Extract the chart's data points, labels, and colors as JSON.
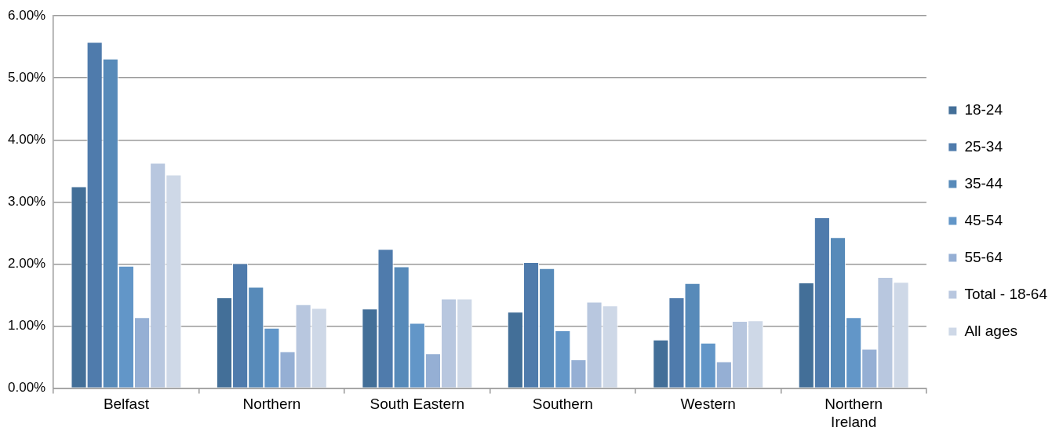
{
  "chart_data": {
    "type": "bar",
    "categories": [
      "Belfast",
      "Northern",
      "South Eastern",
      "Southern",
      "Western",
      "Northern Ireland"
    ],
    "series": [
      {
        "name": "18-24",
        "color": "#436f98",
        "values": [
          3.25,
          1.46,
          1.28,
          1.23,
          0.78,
          1.7
        ]
      },
      {
        "name": "25-34",
        "color": "#4f7bac",
        "values": [
          5.58,
          2.01,
          2.24,
          2.03,
          1.46,
          2.75
        ]
      },
      {
        "name": "35-44",
        "color": "#578ab9",
        "values": [
          5.31,
          1.63,
          1.96,
          1.93,
          1.69,
          2.43
        ]
      },
      {
        "name": "45-54",
        "color": "#6296c8",
        "values": [
          1.97,
          0.97,
          1.05,
          0.93,
          0.73,
          1.14
        ]
      },
      {
        "name": "55-64",
        "color": "#95afd4",
        "values": [
          1.14,
          0.59,
          0.56,
          0.46,
          0.43,
          0.63
        ]
      },
      {
        "name": "Total - 18-64",
        "color": "#b8c7df",
        "values": [
          3.63,
          1.35,
          1.44,
          1.39,
          1.08,
          1.79
        ]
      },
      {
        "name": "All ages",
        "color": "#ced8e7",
        "values": [
          3.44,
          1.29,
          1.44,
          1.33,
          1.09,
          1.71
        ]
      }
    ],
    "ylim": [
      0,
      6
    ],
    "yticks": [
      {
        "value": 0,
        "label": "0.00%"
      },
      {
        "value": 1,
        "label": "1.00%"
      },
      {
        "value": 2,
        "label": "2.00%"
      },
      {
        "value": 3,
        "label": "3.00%"
      },
      {
        "value": 4,
        "label": "4.00%"
      },
      {
        "value": 5,
        "label": "5.00%"
      },
      {
        "value": 6,
        "label": "6.00%"
      }
    ],
    "grid": "y",
    "legend": "right"
  }
}
